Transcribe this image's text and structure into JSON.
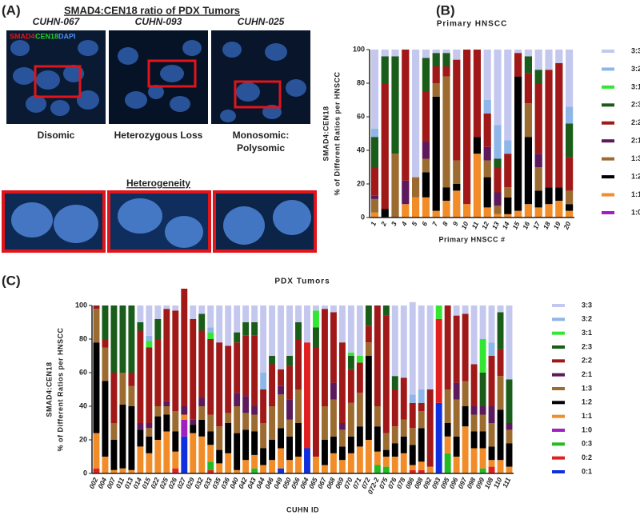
{
  "panel_a": {
    "panel": "(A)",
    "title": "SMAD4:CEN18 ratio of PDX Tumors",
    "images": [
      "CUHN-067",
      "CUHN-093",
      "CUHN-025"
    ],
    "stains": [
      "SMAD4",
      "CEN18",
      "DAPI"
    ],
    "captions": [
      "Disomic",
      "Heterozygous Loss",
      "Monosomic:",
      "Polysomic"
    ],
    "heterogeneity": "Heterogeneity"
  },
  "chart_data": [
    {
      "type": "stacked_bar",
      "panel": "(B)",
      "title": "Primary HNSCC",
      "xlabel": "Primary HNSCC #",
      "ylabel": [
        "SMAD4:CEN18",
        "% of Different Ratios per HNSCC"
      ],
      "categories": [
        "1",
        "2",
        "3",
        "4",
        "5",
        "6",
        "7",
        "8",
        "9",
        "10",
        "11",
        "12",
        "13",
        "14",
        "15",
        "16",
        "17",
        "18",
        "19",
        "20"
      ],
      "ylim": [
        0,
        100
      ],
      "yticks": [
        0,
        20,
        40,
        60,
        80,
        100
      ],
      "legend": "right",
      "series": [
        {
          "name": "1:0",
          "color": "#a020c0",
          "values": [
            0,
            0,
            0,
            0,
            0,
            0,
            0,
            0,
            0,
            0,
            0,
            0,
            0,
            0,
            0,
            0,
            0,
            0,
            0,
            0
          ]
        },
        {
          "name": "1:1",
          "color": "#f28c28",
          "values": [
            3,
            0,
            0,
            8,
            12,
            12,
            4,
            10,
            16,
            8,
            38,
            6,
            2,
            2,
            4,
            8,
            6,
            8,
            10,
            4
          ]
        },
        {
          "name": "1:2",
          "color": "#000000",
          "values": [
            0,
            5,
            0,
            0,
            0,
            15,
            68,
            8,
            4,
            0,
            10,
            18,
            0,
            10,
            80,
            40,
            10,
            10,
            8,
            4
          ]
        },
        {
          "name": "1:3",
          "color": "#9c6b30",
          "values": [
            8,
            0,
            38,
            0,
            12,
            8,
            8,
            66,
            14,
            0,
            0,
            10,
            5,
            6,
            0,
            20,
            14,
            0,
            0,
            8
          ]
        },
        {
          "name": "2:1",
          "color": "#5c1a5c",
          "values": [
            2,
            0,
            0,
            14,
            0,
            10,
            0,
            0,
            0,
            0,
            0,
            8,
            8,
            0,
            0,
            0,
            8,
            0,
            0,
            0
          ]
        },
        {
          "name": "2:2",
          "color": "#a01818",
          "values": [
            17,
            75,
            0,
            78,
            0,
            30,
            10,
            6,
            60,
            92,
            52,
            20,
            15,
            20,
            14,
            18,
            42,
            70,
            74,
            20
          ]
        },
        {
          "name": "2:3",
          "color": "#1a5c1a",
          "values": [
            18,
            16,
            58,
            0,
            0,
            20,
            8,
            8,
            0,
            0,
            0,
            0,
            5,
            0,
            0,
            10,
            8,
            0,
            0,
            20
          ]
        },
        {
          "name": "3:1",
          "color": "#33e633",
          "values": [
            0,
            0,
            0,
            0,
            0,
            0,
            0,
            0,
            0,
            0,
            0,
            0,
            0,
            0,
            0,
            0,
            0,
            0,
            0,
            0
          ]
        },
        {
          "name": "3:2",
          "color": "#8fb6e8",
          "values": [
            5,
            0,
            0,
            0,
            0,
            0,
            0,
            0,
            0,
            0,
            0,
            8,
            20,
            8,
            0,
            0,
            0,
            0,
            0,
            10
          ]
        },
        {
          "name": "3:3",
          "color": "#c5c8ee",
          "values": [
            47,
            4,
            4,
            0,
            76,
            5,
            2,
            2,
            6,
            0,
            0,
            30,
            45,
            54,
            2,
            4,
            12,
            12,
            8,
            34
          ]
        }
      ]
    },
    {
      "type": "stacked_bar",
      "panel": "(C)",
      "title": "PDX Tumors",
      "xlabel": "CUHN ID",
      "ylabel": [
        "SMAD4:CEN18",
        "% of Different Ratios per HNSCC"
      ],
      "categories": [
        "002",
        "004",
        "007",
        "011",
        "013",
        "014",
        "015",
        "022",
        "025",
        "026",
        "027",
        "029",
        "032",
        "033",
        "035",
        "036",
        "040",
        "042",
        "043",
        "044",
        "046",
        "049",
        "050",
        "056",
        "064",
        "065",
        "067",
        "068",
        "069",
        "070",
        "071",
        "072",
        "072-2",
        "075",
        "076",
        "078",
        "086",
        "088",
        "092",
        "093",
        "095",
        "096",
        "097",
        "098",
        "099",
        "108",
        "110",
        "111"
      ],
      "ylim": [
        0,
        100
      ],
      "yticks": [
        0,
        20,
        40,
        60,
        80,
        100
      ],
      "legend": "right",
      "series": [
        {
          "name": "0:1",
          "color": "#1030e0",
          "values": [
            0,
            0,
            0,
            0,
            0,
            0,
            0,
            0,
            0,
            0,
            22,
            0,
            0,
            0,
            0,
            0,
            0,
            0,
            0,
            0,
            0,
            3,
            0,
            0,
            15,
            0,
            0,
            0,
            0,
            0,
            0,
            0,
            0,
            0,
            0,
            0,
            0,
            0,
            0,
            42,
            0,
            0,
            0,
            0,
            0,
            0,
            0,
            0
          ]
        },
        {
          "name": "0:2",
          "color": "#e02020",
          "values": [
            3,
            0,
            0,
            0,
            0,
            0,
            0,
            0,
            0,
            3,
            0,
            0,
            0,
            2,
            0,
            0,
            0,
            0,
            0,
            0,
            0,
            0,
            0,
            0,
            63,
            0,
            0,
            0,
            0,
            0,
            0,
            0,
            0,
            0,
            0,
            0,
            2,
            2,
            0,
            50,
            0,
            0,
            0,
            0,
            0,
            4,
            0,
            0
          ]
        },
        {
          "name": "0:3",
          "color": "#22bb22",
          "values": [
            0,
            0,
            0,
            0,
            0,
            0,
            0,
            0,
            0,
            0,
            0,
            0,
            0,
            5,
            0,
            0,
            0,
            0,
            3,
            0,
            0,
            0,
            0,
            0,
            0,
            0,
            0,
            0,
            0,
            0,
            0,
            0,
            5,
            4,
            0,
            0,
            0,
            0,
            0,
            0,
            12,
            0,
            0,
            0,
            3,
            0,
            0,
            0
          ]
        },
        {
          "name": "1:0",
          "color": "#a020c0",
          "values": [
            0,
            0,
            0,
            0,
            0,
            0,
            0,
            0,
            0,
            0,
            10,
            0,
            0,
            0,
            0,
            0,
            0,
            0,
            0,
            0,
            0,
            0,
            0,
            0,
            0,
            0,
            0,
            0,
            0,
            0,
            0,
            0,
            0,
            0,
            0,
            0,
            0,
            0,
            0,
            0,
            0,
            0,
            0,
            0,
            0,
            0,
            0,
            0
          ]
        },
        {
          "name": "1:1",
          "color": "#f28c28",
          "values": [
            21,
            10,
            2,
            3,
            2,
            16,
            12,
            20,
            25,
            10,
            3,
            24,
            22,
            10,
            6,
            12,
            2,
            8,
            8,
            5,
            8,
            12,
            8,
            10,
            0,
            10,
            5,
            12,
            8,
            12,
            16,
            20,
            8,
            6,
            10,
            12,
            3,
            5,
            4,
            0,
            10,
            10,
            28,
            15,
            12,
            4,
            8,
            4
          ]
        },
        {
          "name": "1:2",
          "color": "#000000",
          "values": [
            54,
            45,
            18,
            38,
            38,
            10,
            10,
            14,
            10,
            12,
            0,
            5,
            10,
            8,
            8,
            18,
            22,
            18,
            14,
            10,
            12,
            12,
            14,
            20,
            0,
            0,
            15,
            10,
            8,
            10,
            12,
            50,
            15,
            4,
            8,
            10,
            12,
            20,
            0,
            0,
            8,
            12,
            12,
            10,
            10,
            8,
            30,
            14
          ]
        },
        {
          "name": "1:3",
          "color": "#9c6b30",
          "values": [
            20,
            20,
            10,
            19,
            12,
            0,
            5,
            6,
            5,
            12,
            0,
            0,
            8,
            10,
            14,
            6,
            16,
            10,
            10,
            15,
            20,
            20,
            10,
            20,
            0,
            0,
            20,
            22,
            10,
            20,
            20,
            8,
            12,
            10,
            10,
            10,
            10,
            10,
            0,
            0,
            20,
            22,
            15,
            10,
            10,
            14,
            20,
            8
          ]
        },
        {
          "name": "2:1",
          "color": "#5c1a5c",
          "values": [
            0,
            0,
            0,
            0,
            0,
            4,
            3,
            0,
            3,
            0,
            5,
            3,
            5,
            0,
            0,
            0,
            8,
            10,
            5,
            0,
            0,
            5,
            12,
            0,
            0,
            0,
            0,
            10,
            4,
            0,
            0,
            0,
            0,
            0,
            0,
            0,
            0,
            0,
            0,
            0,
            0,
            10,
            0,
            5,
            5,
            10,
            0,
            4
          ]
        },
        {
          "name": "2:2",
          "color": "#a01818",
          "values": [
            2,
            5,
            30,
            0,
            8,
            55,
            45,
            40,
            55,
            60,
            70,
            60,
            40,
            45,
            50,
            40,
            30,
            36,
            42,
            20,
            25,
            10,
            20,
            30,
            0,
            65,
            58,
            42,
            48,
            20,
            18,
            10,
            60,
            70,
            22,
            25,
            15,
            5,
            46,
            0,
            50,
            40,
            40,
            25,
            0,
            30,
            16,
            0
          ]
        },
        {
          "name": "2:3",
          "color": "#1a5c1a",
          "values": [
            0,
            20,
            40,
            40,
            40,
            5,
            0,
            12,
            0,
            0,
            0,
            0,
            10,
            0,
            0,
            0,
            6,
            8,
            8,
            0,
            5,
            0,
            6,
            10,
            0,
            12,
            0,
            0,
            0,
            8,
            0,
            12,
            0,
            6,
            8,
            0,
            0,
            0,
            0,
            0,
            0,
            0,
            0,
            0,
            20,
            0,
            22,
            26
          ]
        },
        {
          "name": "3:1",
          "color": "#33e633",
          "values": [
            0,
            0,
            0,
            0,
            0,
            0,
            4,
            0,
            0,
            0,
            0,
            0,
            0,
            4,
            0,
            0,
            0,
            0,
            0,
            0,
            0,
            0,
            0,
            0,
            0,
            10,
            0,
            0,
            0,
            2,
            4,
            0,
            0,
            0,
            0,
            0,
            0,
            0,
            0,
            8,
            0,
            0,
            0,
            0,
            20,
            0,
            0,
            0
          ]
        },
        {
          "name": "3:2",
          "color": "#8fb6e8",
          "values": [
            0,
            0,
            0,
            0,
            0,
            0,
            3,
            0,
            0,
            0,
            0,
            0,
            0,
            3,
            0,
            0,
            0,
            0,
            0,
            10,
            0,
            0,
            0,
            0,
            0,
            0,
            0,
            0,
            0,
            0,
            0,
            0,
            0,
            0,
            0,
            0,
            5,
            8,
            0,
            0,
            0,
            0,
            0,
            0,
            0,
            8,
            0,
            0
          ]
        },
        {
          "name": "3:3",
          "color": "#c5c8ee",
          "values": [
            0,
            0,
            0,
            0,
            0,
            10,
            18,
            8,
            2,
            3,
            0,
            8,
            5,
            13,
            22,
            24,
            16,
            10,
            10,
            40,
            30,
            38,
            30,
            10,
            22,
            3,
            2,
            4,
            22,
            28,
            30,
            0,
            0,
            0,
            42,
            43,
            55,
            50,
            50,
            0,
            0,
            6,
            5,
            35,
            20,
            22,
            4,
            44
          ]
        }
      ]
    }
  ]
}
